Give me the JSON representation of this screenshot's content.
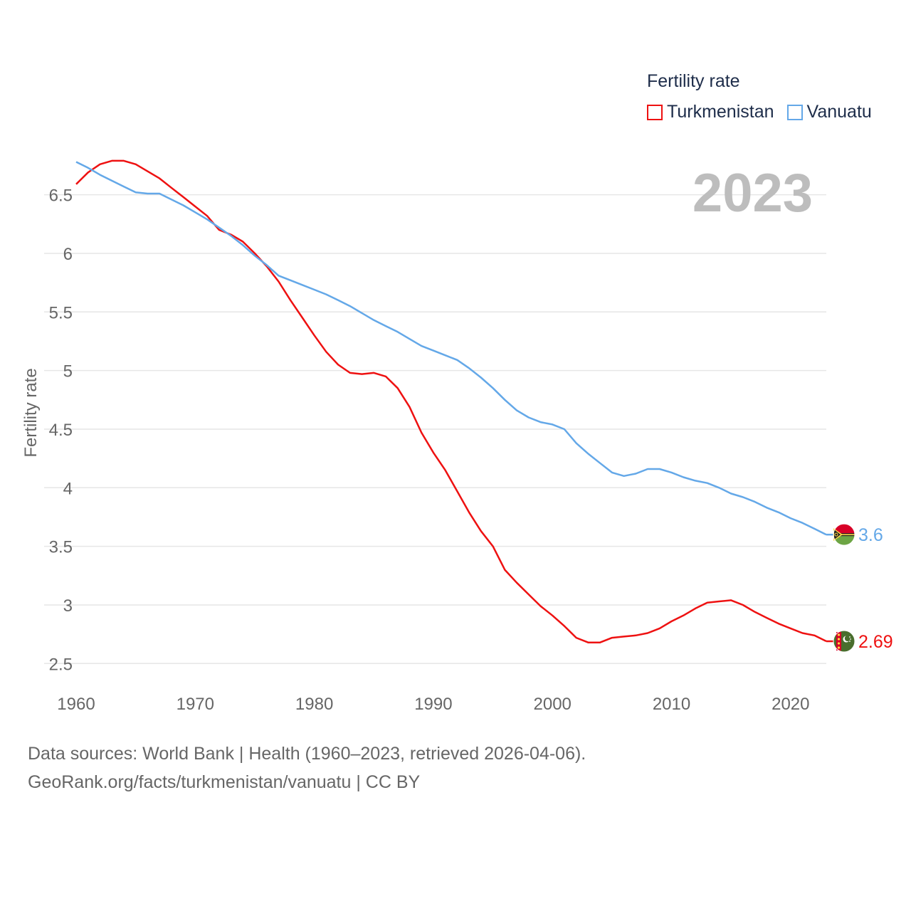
{
  "legend": {
    "title": "Fertility rate",
    "items": [
      {
        "name": "Turkmenistan",
        "color": "#ee1111"
      },
      {
        "name": "Vanuatu",
        "color": "#64a8e8"
      }
    ]
  },
  "year_label": "2023",
  "source": {
    "line1": "Data sources: World Bank | Health (1960–2023, retrieved 2026-04-06).",
    "line2": "GeoRank.org/facts/turkmenistan/vanuatu | CC BY"
  },
  "chart_data": {
    "type": "line",
    "title": "Fertility rate",
    "xlabel": "",
    "ylabel": "Fertility rate",
    "xlim": [
      1960,
      2023
    ],
    "ylim": [
      2.35,
      6.85
    ],
    "xticks": [
      1960,
      1970,
      1980,
      1990,
      2000,
      2010,
      2020
    ],
    "xtick_labels": [
      "1960",
      "1970",
      "1980",
      "1990",
      "2000",
      "2010",
      "2020"
    ],
    "yticks": [
      2.5,
      3,
      3.5,
      4,
      4.5,
      5,
      5.5,
      6,
      6.5
    ],
    "ytick_labels": [
      "2.5",
      "3",
      "3.5",
      "4",
      "4.5",
      "5",
      "5.5",
      "6",
      "6.5"
    ],
    "grid": true,
    "legend_position": "top-right",
    "x": [
      1960,
      1961,
      1962,
      1963,
      1964,
      1965,
      1966,
      1967,
      1968,
      1969,
      1970,
      1971,
      1972,
      1973,
      1974,
      1975,
      1976,
      1977,
      1978,
      1979,
      1980,
      1981,
      1982,
      1983,
      1984,
      1985,
      1986,
      1987,
      1988,
      1989,
      1990,
      1991,
      1992,
      1993,
      1994,
      1995,
      1996,
      1997,
      1998,
      1999,
      2000,
      2001,
      2002,
      2003,
      2004,
      2005,
      2006,
      2007,
      2008,
      2009,
      2010,
      2011,
      2012,
      2013,
      2014,
      2015,
      2016,
      2017,
      2018,
      2019,
      2020,
      2021,
      2022,
      2023
    ],
    "series": [
      {
        "name": "Turkmenistan",
        "color": "#ee1111",
        "end_label": "2.69",
        "values": [
          6.59,
          6.69,
          6.76,
          6.79,
          6.79,
          6.76,
          6.7,
          6.64,
          6.56,
          6.48,
          6.4,
          6.32,
          6.2,
          6.16,
          6.1,
          6.0,
          5.89,
          5.76,
          5.6,
          5.45,
          5.3,
          5.16,
          5.05,
          4.98,
          4.97,
          4.98,
          4.95,
          4.85,
          4.69,
          4.47,
          4.3,
          4.15,
          3.97,
          3.79,
          3.63,
          3.5,
          3.3,
          3.19,
          3.09,
          2.99,
          2.91,
          2.82,
          2.72,
          2.68,
          2.68,
          2.72,
          2.73,
          2.74,
          2.76,
          2.8,
          2.86,
          2.91,
          2.97,
          3.02,
          3.03,
          3.04,
          3.0,
          2.94,
          2.89,
          2.84,
          2.8,
          2.76,
          2.74,
          2.69
        ]
      },
      {
        "name": "Vanuatu",
        "color": "#64a8e8",
        "end_label": "3.6",
        "values": [
          6.78,
          6.73,
          6.67,
          6.62,
          6.57,
          6.52,
          6.51,
          6.51,
          6.46,
          6.41,
          6.35,
          6.29,
          6.22,
          6.15,
          6.07,
          5.98,
          5.9,
          5.81,
          5.77,
          5.73,
          5.69,
          5.65,
          5.6,
          5.55,
          5.49,
          5.43,
          5.38,
          5.33,
          5.27,
          5.21,
          5.17,
          5.13,
          5.09,
          5.02,
          4.94,
          4.85,
          4.75,
          4.66,
          4.6,
          4.56,
          4.54,
          4.5,
          4.38,
          4.29,
          4.21,
          4.13,
          4.1,
          4.12,
          4.16,
          4.16,
          4.13,
          4.09,
          4.06,
          4.04,
          4.0,
          3.95,
          3.92,
          3.88,
          3.83,
          3.79,
          3.74,
          3.7,
          3.65,
          3.6
        ]
      }
    ]
  }
}
